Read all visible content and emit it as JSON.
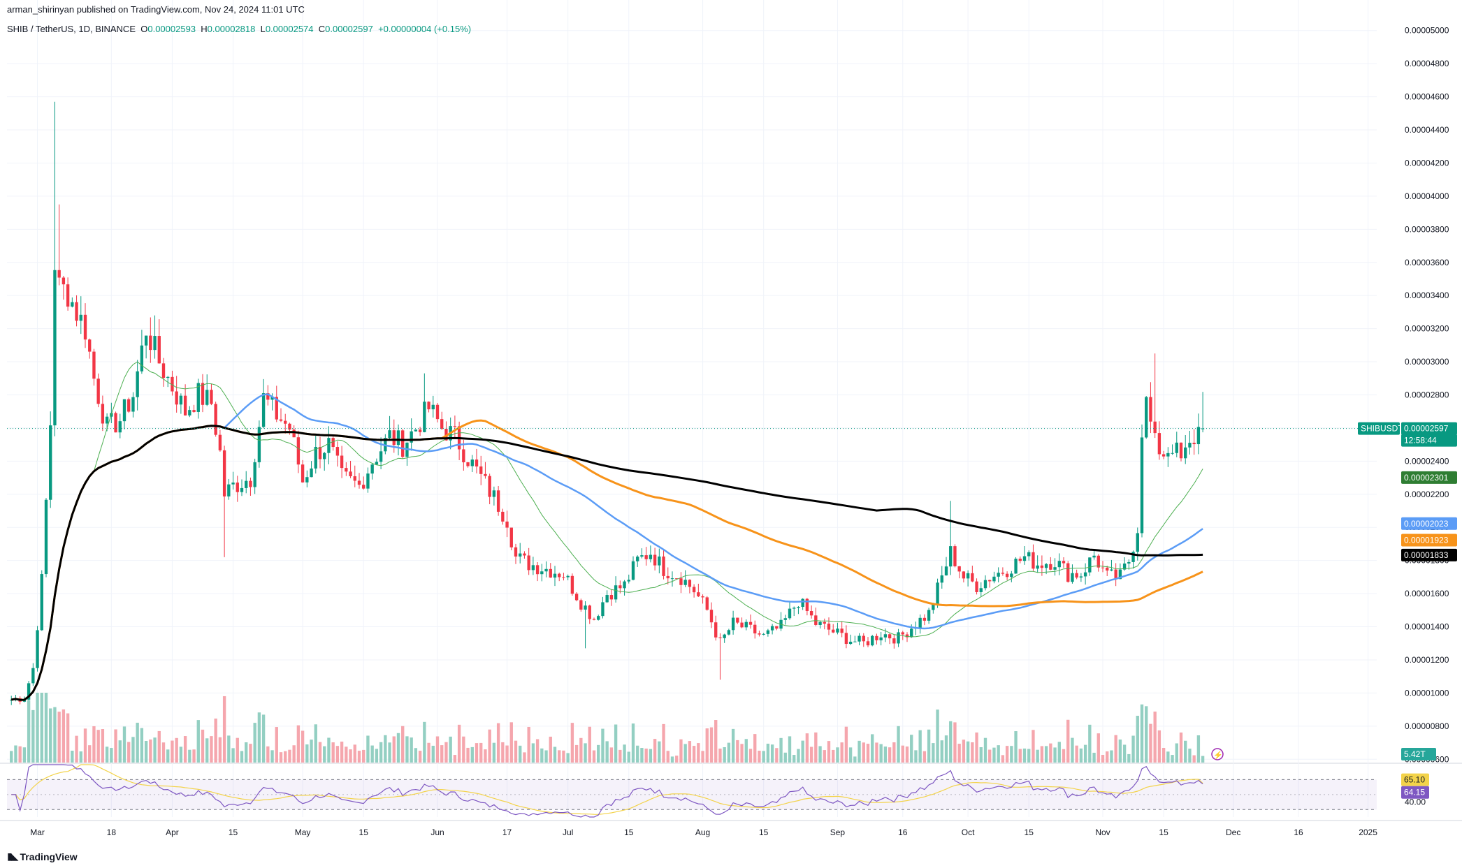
{
  "header": {
    "published": "arman_shirinyan published on TradingView.com, Nov 24, 2024 11:01 UTC",
    "symbol": "SHIB / TetherUS, 1D, BINANCE",
    "open_label": "O",
    "open": "0.00002593",
    "high_label": "H",
    "high": "0.00002818",
    "low_label": "L",
    "low": "0.00002574",
    "close_label": "C",
    "close": "0.00002597",
    "change": "+0.00000004 (+0.15%)"
  },
  "branding": {
    "logo_text": "TradingView"
  },
  "colors": {
    "up": "#089981",
    "down": "#f23645",
    "up_vol": "#93cfc2",
    "down_vol": "#f5a6ad",
    "ma_fast": "#4caf50",
    "ma_blue": "#5b9cf6",
    "ma_orange": "#f7931a",
    "ma_black": "#000000",
    "rsi": "#7e57c2",
    "rsi_ma": "#f3d34a",
    "grid": "#f0f3fa"
  },
  "chart_data": [
    {
      "type": "candlestick",
      "title": "SHIB / TetherUS, 1D, BINANCE",
      "y_ticks": [
        "0.00000600",
        "0.00000800",
        "0.00001000",
        "0.00001200",
        "0.00001400",
        "0.00001600",
        "0.00001800",
        "0.00002000",
        "0.00002200",
        "0.00002400",
        "0.00002600",
        "0.00002800",
        "0.00003000",
        "0.00003200",
        "0.00003400",
        "0.00003600",
        "0.00003800",
        "0.00004000",
        "0.00004200",
        "0.00004400",
        "0.00004600",
        "0.00004800",
        "0.00005000"
      ],
      "ylim": [
        5.8e-06,
        5.1e-05
      ],
      "x_ticks": [
        "Mar",
        "18",
        "Apr",
        "15",
        "May",
        "15",
        "Jun",
        "17",
        "Jul",
        "15",
        "Aug",
        "15",
        "Sep",
        "16",
        "Oct",
        "15",
        "Nov",
        "15",
        "Dec",
        "16",
        "2025"
      ],
      "grid": true,
      "close_series": [
        [
          "2024-02-24",
          9.6e-06
        ],
        [
          "2024-02-27",
          9.75e-06
        ],
        [
          "2024-02-29",
          1.15e-05
        ],
        [
          "2024-03-02",
          1.68e-05
        ],
        [
          "2024-03-04",
          2.63e-05
        ],
        [
          "2024-03-05",
          3.6e-05
        ],
        [
          "2024-03-06",
          3.45e-05
        ],
        [
          "2024-03-08",
          3.42e-05
        ],
        [
          "2024-03-10",
          3.3e-05
        ],
        [
          "2024-03-12",
          3.2e-05
        ],
        [
          "2024-03-14",
          2.9e-05
        ],
        [
          "2024-03-17",
          2.6e-05
        ],
        [
          "2024-03-20",
          2.65e-05
        ],
        [
          "2024-03-23",
          2.8e-05
        ],
        [
          "2024-03-26",
          3.2e-05
        ],
        [
          "2024-03-29",
          3e-05
        ],
        [
          "2024-04-01",
          2.85e-05
        ],
        [
          "2024-04-04",
          2.7e-05
        ],
        [
          "2024-04-07",
          2.8e-05
        ],
        [
          "2024-04-10",
          2.75e-05
        ],
        [
          "2024-04-12",
          2.45e-05
        ],
        [
          "2024-04-13",
          2.2e-05
        ],
        [
          "2024-04-15",
          2.25e-05
        ],
        [
          "2024-04-19",
          2.3e-05
        ],
        [
          "2024-04-22",
          2.78e-05
        ],
        [
          "2024-04-25",
          2.68e-05
        ],
        [
          "2024-04-28",
          2.6e-05
        ],
        [
          "2024-05-01",
          2.28e-05
        ],
        [
          "2024-05-04",
          2.45e-05
        ],
        [
          "2024-05-07",
          2.5e-05
        ],
        [
          "2024-05-10",
          2.3e-05
        ],
        [
          "2024-05-14",
          2.25e-05
        ],
        [
          "2024-05-17",
          2.4e-05
        ],
        [
          "2024-05-21",
          2.55e-05
        ],
        [
          "2024-05-24",
          2.5e-05
        ],
        [
          "2024-05-27",
          2.6e-05
        ],
        [
          "2024-05-30",
          2.72e-05
        ],
        [
          "2024-06-02",
          2.6e-05
        ],
        [
          "2024-06-05",
          2.55e-05
        ],
        [
          "2024-06-08",
          2.42e-05
        ],
        [
          "2024-06-11",
          2.3e-05
        ],
        [
          "2024-06-14",
          2.18e-05
        ],
        [
          "2024-06-17",
          2.05e-05
        ],
        [
          "2024-06-19",
          1.82e-05
        ],
        [
          "2024-06-22",
          1.78e-05
        ],
        [
          "2024-06-26",
          1.75e-05
        ],
        [
          "2024-06-30",
          1.72e-05
        ],
        [
          "2024-07-04",
          1.55e-05
        ],
        [
          "2024-07-07",
          1.45e-05
        ],
        [
          "2024-07-10",
          1.6e-05
        ],
        [
          "2024-07-14",
          1.65e-05
        ],
        [
          "2024-07-17",
          1.8e-05
        ],
        [
          "2024-07-20",
          1.85e-05
        ],
        [
          "2024-07-23",
          1.75e-05
        ],
        [
          "2024-07-27",
          1.7e-05
        ],
        [
          "2024-07-30",
          1.62e-05
        ],
        [
          "2024-08-02",
          1.5e-05
        ],
        [
          "2024-08-05",
          1.3e-05
        ],
        [
          "2024-08-08",
          1.42e-05
        ],
        [
          "2024-08-12",
          1.38e-05
        ],
        [
          "2024-08-15",
          1.34e-05
        ],
        [
          "2024-08-19",
          1.4e-05
        ],
        [
          "2024-08-23",
          1.56e-05
        ],
        [
          "2024-08-27",
          1.42e-05
        ],
        [
          "2024-08-31",
          1.37e-05
        ],
        [
          "2024-09-04",
          1.32e-05
        ],
        [
          "2024-09-07",
          1.3e-05
        ],
        [
          "2024-09-11",
          1.36e-05
        ],
        [
          "2024-09-15",
          1.33e-05
        ],
        [
          "2024-09-19",
          1.42e-05
        ],
        [
          "2024-09-22",
          1.48e-05
        ],
        [
          "2024-09-25",
          1.7e-05
        ],
        [
          "2024-09-27",
          1.85e-05
        ],
        [
          "2024-09-30",
          1.7e-05
        ],
        [
          "2024-10-03",
          1.65e-05
        ],
        [
          "2024-10-06",
          1.7e-05
        ],
        [
          "2024-10-10",
          1.75e-05
        ],
        [
          "2024-10-14",
          1.82e-05
        ],
        [
          "2024-10-17",
          1.78e-05
        ],
        [
          "2024-10-21",
          1.8e-05
        ],
        [
          "2024-10-24",
          1.72e-05
        ],
        [
          "2024-10-27",
          1.72e-05
        ],
        [
          "2024-10-30",
          1.83e-05
        ],
        [
          "2024-11-02",
          1.7e-05
        ],
        [
          "2024-11-05",
          1.7e-05
        ],
        [
          "2024-11-07",
          1.8e-05
        ],
        [
          "2024-11-09",
          2e-05
        ],
        [
          "2024-11-10",
          2.6e-05
        ],
        [
          "2024-11-11",
          2.75e-05
        ],
        [
          "2024-11-13",
          2.5e-05
        ],
        [
          "2024-11-15",
          2.45e-05
        ],
        [
          "2024-11-17",
          2.5e-05
        ],
        [
          "2024-11-19",
          2.4e-05
        ],
        [
          "2024-11-21",
          2.48e-05
        ],
        [
          "2024-11-23",
          2.593e-05
        ],
        [
          "2024-11-24",
          2.597e-05
        ]
      ],
      "moving_averages": [
        {
          "color": "#4caf50",
          "last": 2.301e-05
        },
        {
          "color": "#5b9cf6",
          "last": 2.023e-05
        },
        {
          "color": "#f7931a",
          "last": 1.923e-05
        },
        {
          "color": "#000000",
          "last": 1.833e-05
        }
      ],
      "price_labels": [
        {
          "text": "SHIBUSDT",
          "kind": "symbol"
        },
        {
          "text": "0.00002597",
          "kind": "last",
          "color": "#089981"
        },
        {
          "text": "12:58:44",
          "kind": "countdown",
          "color": "#089981"
        },
        {
          "text": "0.00002301",
          "kind": "ma",
          "color": "#2e7d32"
        },
        {
          "text": "0.00002023",
          "kind": "ma",
          "color": "#5b9cf6"
        },
        {
          "text": "0.00001923",
          "kind": "ma",
          "color": "#f7931a"
        },
        {
          "text": "0.00001833",
          "kind": "ma",
          "color": "#000000"
        }
      ],
      "volume_label": "5.42T"
    },
    {
      "type": "line",
      "title": "",
      "y_ticks": [
        "40.00"
      ],
      "ylim": [
        20,
        90
      ],
      "rsi_last": "64.15",
      "rsi_ma_last": "65.10",
      "band": [
        30,
        70
      ]
    }
  ]
}
